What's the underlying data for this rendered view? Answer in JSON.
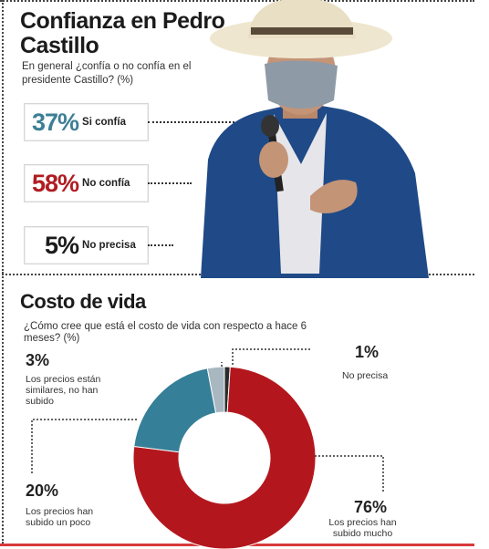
{
  "section1": {
    "title": "Confianza en Pedro Castillo",
    "question": "En general ¿confía o no confía en el presidente Castillo? (%)",
    "items": [
      {
        "pct": "37%",
        "label": "Si confía",
        "color": "#3d7f95"
      },
      {
        "pct": "58%",
        "label": "No confía",
        "color": "#b01c22"
      },
      {
        "pct": "5%",
        "label": "No precisa",
        "color": "#1b1b1b"
      }
    ]
  },
  "section2": {
    "title": "Costo de vida",
    "question": "¿Cómo cree que está el costo de vida con respecto a hace 6 meses? (%)"
  },
  "chart_data": {
    "type": "pie",
    "donut": true,
    "title": "Costo de vida",
    "categories": [
      "No precisa",
      "Los precios han subido mucho",
      "Los precios han subido un poco",
      "Los precios están similares, no han subido"
    ],
    "values": [
      1,
      76,
      20,
      3
    ],
    "labels": [
      "1%",
      "76%",
      "20%",
      "3%"
    ],
    "colors": [
      "#2b2b2b",
      "#b3171d",
      "#367f98",
      "#a9b7c0"
    ]
  }
}
